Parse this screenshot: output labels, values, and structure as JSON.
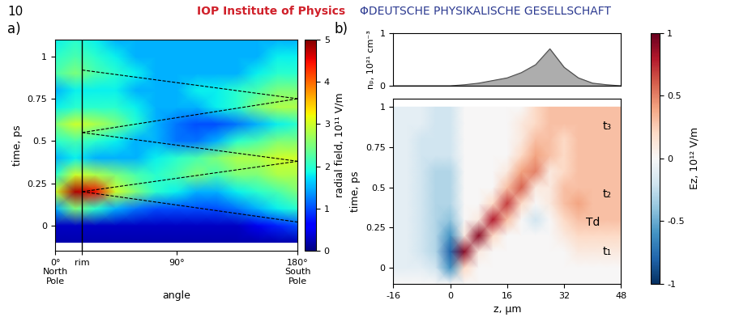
{
  "header": {
    "page": "10",
    "publisher": "IOP Institute of Physics",
    "society": "ΦDEUTSCHE PHYSIKALISCHE GESELLSCHAFT"
  },
  "chart_data": [
    {
      "type": "heatmap",
      "panel": "a)",
      "xlabel": "angle",
      "ylabel": "time, ps",
      "x": [
        0,
        15,
        30,
        45,
        60,
        75,
        90,
        105,
        120,
        135,
        150,
        165,
        180
      ],
      "y": [
        -0.1,
        0,
        0.1,
        0.2,
        0.3,
        0.4,
        0.5,
        0.6,
        0.7,
        0.8,
        0.9,
        1.0,
        1.1
      ],
      "cells": [
        [
          0.2,
          0.2,
          0.2,
          0.2,
          0.2,
          0.2,
          0.2,
          0.2,
          0.2,
          0.2,
          0.2,
          0.2,
          0.2
        ],
        [
          0.3,
          0.3,
          0.3,
          0.3,
          0.3,
          0.3,
          0.3,
          0.3,
          0.3,
          0.3,
          0.5,
          0.8,
          1.0
        ],
        [
          1.5,
          2.5,
          2.0,
          1.5,
          1.2,
          1.0,
          1.0,
          1.0,
          1.0,
          1.2,
          1.5,
          1.8,
          2.0
        ],
        [
          3.0,
          4.8,
          4.5,
          3.0,
          2.5,
          2.0,
          1.8,
          1.5,
          1.5,
          1.8,
          2.0,
          2.2,
          2.5
        ],
        [
          2.0,
          3.0,
          2.8,
          2.5,
          2.2,
          2.0,
          2.2,
          2.5,
          2.2,
          2.5,
          2.5,
          2.8,
          2.8
        ],
        [
          1.5,
          1.8,
          1.5,
          1.5,
          1.5,
          1.8,
          2.0,
          2.2,
          2.5,
          2.8,
          2.8,
          3.0,
          3.0
        ],
        [
          2.0,
          2.2,
          2.0,
          1.8,
          1.5,
          1.5,
          1.2,
          1.2,
          1.5,
          2.0,
          2.2,
          2.5,
          2.5
        ],
        [
          2.5,
          3.0,
          2.8,
          2.5,
          2.0,
          1.5,
          1.2,
          1.0,
          1.0,
          1.2,
          1.5,
          1.8,
          2.0
        ],
        [
          1.8,
          2.0,
          2.0,
          2.0,
          1.8,
          1.5,
          1.5,
          1.5,
          1.8,
          2.0,
          2.5,
          2.8,
          2.8
        ],
        [
          1.5,
          1.8,
          1.8,
          1.8,
          1.5,
          1.5,
          1.5,
          1.8,
          1.8,
          2.0,
          2.2,
          2.5,
          2.5
        ],
        [
          2.2,
          2.5,
          2.2,
          2.0,
          1.8,
          1.5,
          1.5,
          1.5,
          1.5,
          1.5,
          1.8,
          2.0,
          2.0
        ],
        [
          2.0,
          2.2,
          2.0,
          1.8,
          1.5,
          1.5,
          1.5,
          1.5,
          1.5,
          1.5,
          1.5,
          1.8,
          1.8
        ],
        [
          1.8,
          2.0,
          1.8,
          1.5,
          1.5,
          1.5,
          1.5,
          1.5,
          1.5,
          1.5,
          1.5,
          1.5,
          1.5
        ]
      ],
      "xlim": [
        0,
        180
      ],
      "ylim": [
        -0.15,
        1.1
      ],
      "xticks": [
        {
          "value": 0,
          "label": "0°\nNorth\nPole"
        },
        {
          "value": 20,
          "label": "rim"
        },
        {
          "value": 90,
          "label": "90°"
        },
        {
          "value": 180,
          "label": "180°\nSouth\nPole"
        }
      ],
      "yticks": [
        0,
        0.25,
        0.5,
        0.75,
        1
      ],
      "vline": 20,
      "lines": [
        [
          [
            20,
            0.2
          ],
          [
            180,
            0.02
          ]
        ],
        [
          [
            20,
            0.2
          ],
          [
            180,
            0.38
          ]
        ],
        [
          [
            20,
            0.55
          ],
          [
            180,
            0.38
          ]
        ],
        [
          [
            20,
            0.55
          ],
          [
            180,
            0.75
          ]
        ],
        [
          [
            20,
            0.92
          ],
          [
            180,
            0.75
          ]
        ]
      ],
      "colorbar": {
        "label": "radial field, 10¹¹ V/m",
        "range": [
          0,
          5
        ],
        "ticks": [
          0,
          1,
          2,
          3,
          4,
          5
        ]
      }
    },
    {
      "type": "heatmap",
      "panel": "b)",
      "xlabel": "z, μm",
      "ylabel": "time, ps",
      "x": [
        -16,
        -12,
        -8,
        -4,
        0,
        4,
        8,
        12,
        16,
        20,
        24,
        28,
        32,
        36,
        40,
        44,
        48
      ],
      "y": [
        -0.1,
        0,
        0.1,
        0.2,
        0.3,
        0.4,
        0.5,
        0.6,
        0.7,
        0.8,
        0.9,
        1.0
      ],
      "cells": [
        [
          0,
          0,
          0,
          0,
          0,
          0,
          0,
          0,
          0,
          0,
          0,
          0,
          0,
          0,
          0,
          0,
          0
        ],
        [
          -0.1,
          -0.1,
          -0.1,
          -0.2,
          -0.6,
          0.2,
          0,
          0,
          0,
          0,
          0,
          0,
          0,
          0,
          0,
          0,
          0
        ],
        [
          -0.1,
          -0.1,
          -0.2,
          -0.3,
          -0.8,
          0.9,
          0.1,
          0,
          0,
          0,
          0,
          0,
          0,
          0.1,
          0.1,
          0.1,
          0.1
        ],
        [
          -0.1,
          -0.1,
          -0.2,
          -0.3,
          -0.6,
          0.1,
          0.9,
          0.2,
          0,
          0,
          0,
          0,
          0.1,
          0.2,
          0.2,
          0.2,
          0.2
        ],
        [
          -0.1,
          -0.1,
          -0.2,
          -0.3,
          -0.4,
          0,
          0.1,
          0.8,
          0.3,
          0,
          -0.2,
          0,
          0.2,
          0.3,
          0.3,
          0.3,
          0.3
        ],
        [
          -0.1,
          -0.1,
          -0.2,
          -0.3,
          -0.3,
          0,
          0,
          0.2,
          0.7,
          0.2,
          0,
          0.1,
          0.3,
          0.4,
          0.3,
          0.3,
          0.3
        ],
        [
          -0.1,
          -0.1,
          -0.2,
          -0.3,
          -0.3,
          0,
          0,
          0,
          0.3,
          0.6,
          0.1,
          0.1,
          0.3,
          0.3,
          0.3,
          0.3,
          0.3
        ],
        [
          -0.1,
          -0.1,
          -0.2,
          -0.3,
          -0.3,
          0,
          0,
          0,
          0.1,
          0.4,
          0.5,
          0.1,
          0.2,
          0.3,
          0.3,
          0.3,
          0.3
        ],
        [
          -0.1,
          -0.1,
          -0.2,
          -0.2,
          -0.2,
          0,
          0,
          0,
          0,
          0.2,
          0.4,
          0.3,
          0.2,
          0.3,
          0.3,
          0.3,
          0.3
        ],
        [
          -0.1,
          -0.1,
          -0.2,
          -0.2,
          -0.2,
          0,
          0,
          0,
          0,
          0.1,
          0.3,
          0.3,
          0.2,
          0.3,
          0.3,
          0.3,
          0.3
        ],
        [
          -0.1,
          -0.1,
          -0.1,
          -0.2,
          -0.2,
          0,
          0,
          0,
          0,
          0.1,
          0.2,
          0.3,
          0.3,
          0.3,
          0.3,
          0.3,
          0.3
        ],
        [
          -0.1,
          -0.1,
          -0.1,
          -0.2,
          -0.2,
          0,
          0,
          0,
          0,
          0,
          0.2,
          0.3,
          0.3,
          0.3,
          0.3,
          0.3,
          0.3
        ]
      ],
      "xlim": [
        -16,
        48
      ],
      "ylim": [
        -0.1,
        1.05
      ],
      "xticks": [
        -16,
        0,
        16,
        32,
        48
      ],
      "yticks": [
        0,
        0.25,
        0.5,
        0.75,
        1
      ],
      "annotations": [
        {
          "text": "t₁",
          "x": 44,
          "y": 0.1
        },
        {
          "text": "Td",
          "x": 40,
          "y": 0.28
        },
        {
          "text": "t₂",
          "x": 44,
          "y": 0.46
        },
        {
          "text": "t₃",
          "x": 44,
          "y": 0.88
        }
      ],
      "density": {
        "label": "nₚ, 10²¹ cm⁻³",
        "z": [
          -16,
          -12,
          -8,
          -4,
          0,
          4,
          8,
          12,
          16,
          20,
          24,
          28,
          32,
          36,
          40,
          44,
          48
        ],
        "values": [
          0,
          0,
          0,
          0,
          0,
          0.02,
          0.05,
          0.1,
          0.15,
          0.25,
          0.4,
          0.7,
          0.35,
          0.15,
          0.05,
          0.02,
          0
        ],
        "ylim": [
          0,
          1
        ],
        "yticks": [
          0,
          1
        ]
      },
      "colorbar": {
        "label": "Ez, 10¹² V/m",
        "range": [
          -1,
          1
        ],
        "ticks": [
          -1,
          -0.5,
          0,
          0.5,
          1
        ]
      }
    }
  ]
}
